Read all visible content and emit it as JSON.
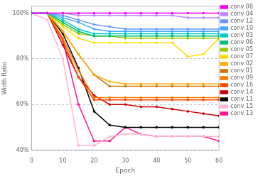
{
  "chart_data": {
    "type": "line",
    "x": [
      0,
      5,
      10,
      15,
      20,
      25,
      30,
      35,
      40,
      45,
      50,
      55,
      60
    ],
    "series": [
      {
        "name": "conv 08",
        "color": "#FF00FF",
        "marker": "o",
        "values": [
          1.0,
          1.0,
          1.0,
          1.0,
          1.0,
          1.0,
          1.0,
          1.0,
          1.0,
          1.0,
          1.0,
          1.0,
          1.0
        ]
      },
      {
        "name": "conv 04",
        "color": "#BB88FF",
        "marker": "o",
        "values": [
          1.0,
          1.0,
          1.0,
          0.99,
          0.99,
          0.99,
          0.99,
          0.99,
          0.99,
          0.99,
          0.98,
          0.98,
          0.98
        ]
      },
      {
        "name": "conv 12",
        "color": "#6699FF",
        "marker": "o",
        "values": [
          1.0,
          1.0,
          0.99,
          0.97,
          0.95,
          0.94,
          0.93,
          0.93,
          0.93,
          0.93,
          0.93,
          0.93,
          0.93
        ]
      },
      {
        "name": "conv 10",
        "color": "#44AAFF",
        "marker": "o",
        "values": [
          1.0,
          1.0,
          0.98,
          0.96,
          0.93,
          0.92,
          0.92,
          0.92,
          0.92,
          0.92,
          0.92,
          0.92,
          0.92
        ]
      },
      {
        "name": "conv 03",
        "color": "#00CCCC",
        "marker": "o",
        "values": [
          1.0,
          1.0,
          0.97,
          0.93,
          0.91,
          0.91,
          0.91,
          0.91,
          0.91,
          0.91,
          0.91,
          0.91,
          0.91
        ]
      },
      {
        "name": "conv 06",
        "color": "#00BB77",
        "marker": "o",
        "values": [
          1.0,
          1.0,
          0.96,
          0.92,
          0.9,
          0.9,
          0.9,
          0.9,
          0.9,
          0.9,
          0.9,
          0.9,
          0.9
        ]
      },
      {
        "name": "conv 05",
        "color": "#99CC00",
        "marker": "o",
        "values": [
          1.0,
          1.0,
          0.95,
          0.91,
          0.9,
          0.9,
          0.89,
          0.89,
          0.89,
          0.89,
          0.89,
          0.89,
          0.89
        ]
      },
      {
        "name": "conv 07",
        "color": "#FFDD00",
        "marker": "o",
        "values": [
          1.0,
          1.0,
          0.94,
          0.89,
          0.87,
          0.87,
          0.87,
          0.87,
          0.87,
          0.87,
          0.81,
          0.82,
          0.89
        ]
      },
      {
        "name": "conv 02",
        "color": "#FFAA00",
        "marker": "o",
        "values": [
          1.0,
          1.0,
          0.92,
          0.82,
          0.73,
          0.7,
          0.69,
          0.69,
          0.69,
          0.69,
          0.69,
          0.69,
          0.69
        ]
      },
      {
        "name": "conv 01",
        "color": "#CC7700",
        "marker": "o",
        "values": [
          1.0,
          1.0,
          0.92,
          0.82,
          0.73,
          0.68,
          0.68,
          0.68,
          0.68,
          0.68,
          0.68,
          0.68,
          0.68
        ]
      },
      {
        "name": "conv 09",
        "color": "#FF7700",
        "marker": "o",
        "values": [
          1.0,
          1.0,
          0.89,
          0.75,
          0.63,
          0.63,
          0.63,
          0.63,
          0.63,
          0.63,
          0.63,
          0.63,
          0.63
        ]
      },
      {
        "name": "conv 16",
        "color": "#FF4400",
        "marker": "o",
        "values": [
          1.0,
          1.0,
          0.88,
          0.72,
          0.62,
          0.62,
          0.62,
          0.62,
          0.62,
          0.62,
          0.62,
          0.62,
          0.62
        ]
      },
      {
        "name": "conv 14",
        "color": "#CC0000",
        "marker": "o",
        "values": [
          1.0,
          1.0,
          0.86,
          0.72,
          0.64,
          0.6,
          0.6,
          0.59,
          0.59,
          0.58,
          0.57,
          0.56,
          0.55
        ]
      },
      {
        "name": "conv 11",
        "color": "#000000",
        "marker": "o",
        "values": [
          1.0,
          1.0,
          0.91,
          0.76,
          0.57,
          0.51,
          0.5,
          0.5,
          0.5,
          0.5,
          0.5,
          0.5,
          0.5
        ]
      },
      {
        "name": "conv 15",
        "color": "#FFB8C8",
        "marker": "o",
        "values": [
          1.0,
          0.97,
          0.8,
          0.42,
          0.42,
          0.46,
          0.47,
          0.47,
          0.46,
          0.46,
          0.46,
          0.46,
          0.46
        ]
      },
      {
        "name": "conv 13",
        "color": "#FF1493",
        "marker": "o",
        "values": [
          1.0,
          1.0,
          0.88,
          0.6,
          0.44,
          0.44,
          0.5,
          0.47,
          0.46,
          0.46,
          0.46,
          0.46,
          0.44
        ]
      }
    ],
    "xlabel": "Epoch",
    "ylabel": "Width Ratio",
    "xlim": [
      0,
      60
    ],
    "ylim": [
      0.4,
      1.03
    ],
    "xticks": [
      0,
      10,
      20,
      30,
      40,
      50,
      60
    ],
    "yticks": [
      {
        "value": 0.4,
        "label": "40%"
      },
      {
        "value": 0.6,
        "label": "60%"
      },
      {
        "value": 0.8,
        "label": "80%"
      },
      {
        "value": 1.0,
        "label": "100%"
      }
    ],
    "grid": true,
    "legend": "right"
  }
}
